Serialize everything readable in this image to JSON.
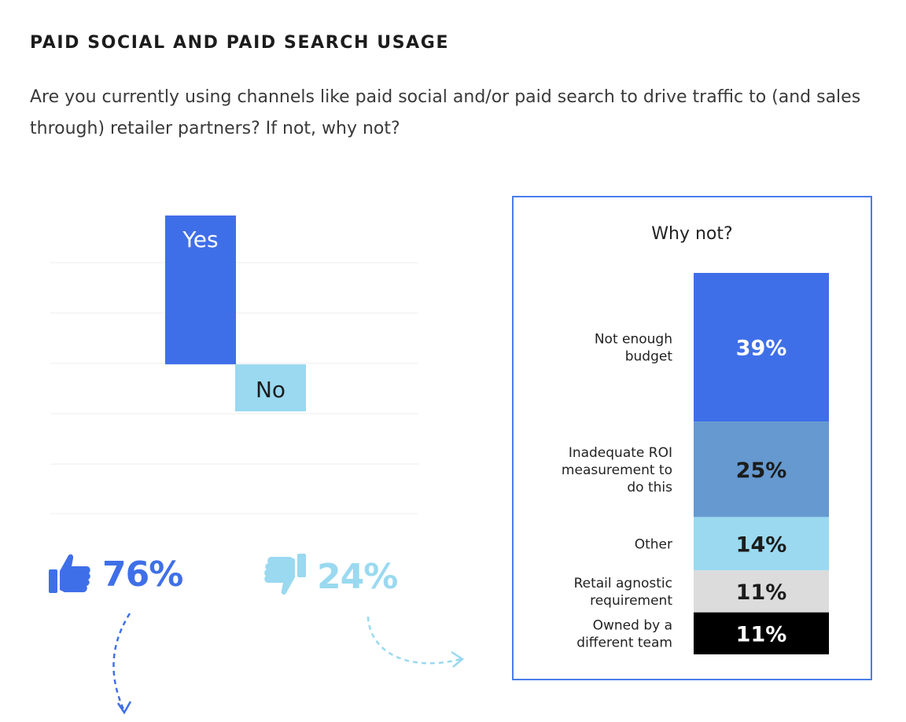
{
  "heading": "PAID SOCIAL AND PAID SEARCH USAGE",
  "question": "Are you currently using channels like paid social and/or paid search to drive traffic to (and sales through) retailer partners? If not, why not?",
  "colors": {
    "yes": "#3f6fe8",
    "no": "#9ad9f0",
    "not_enough_budget": "#3f6fe8",
    "inadequate_roi": "#6599cf",
    "other": "#9ad9f0",
    "retail_agnostic": "#dcdcdc",
    "owned_by_other_team": "#000000",
    "box_border": "#4a7de8"
  },
  "stats": {
    "yes_pct": "76%",
    "no_pct": "24%",
    "yes_icon": "thumbs-up-icon",
    "no_icon": "thumbs-down-icon"
  },
  "chart_data": [
    {
      "type": "bar",
      "categories": [
        "Yes",
        "No"
      ],
      "values": [
        76,
        24
      ],
      "title": "",
      "xlabel": "",
      "ylabel": "",
      "grid": true,
      "legend": "none"
    },
    {
      "type": "bar",
      "stacked": true,
      "title": "Why not?",
      "categories": [
        "Not enough budget",
        "Inadequate ROI measurement to do this",
        "Other",
        "Retail agnostic requirement",
        "Owned by a different team"
      ],
      "label_lines": [
        [
          "Not enough",
          "budget"
        ],
        [
          "Inadequate ROI",
          "measurement to",
          "do this"
        ],
        [
          "Other"
        ],
        [
          "Retail agnostic",
          "requirement"
        ],
        [
          "Owned by a",
          "different team"
        ]
      ],
      "values": [
        39,
        25,
        14,
        11,
        11
      ],
      "value_labels": [
        "39%",
        "25%",
        "14%",
        "11%",
        "11%"
      ],
      "colors": [
        "#3f6fe8",
        "#6599cf",
        "#9ad9f0",
        "#dcdcdc",
        "#000000"
      ],
      "text_colors": [
        "#ffffff",
        "#1c1c1c",
        "#1c1c1c",
        "#1c1c1c",
        "#ffffff"
      ]
    }
  ]
}
